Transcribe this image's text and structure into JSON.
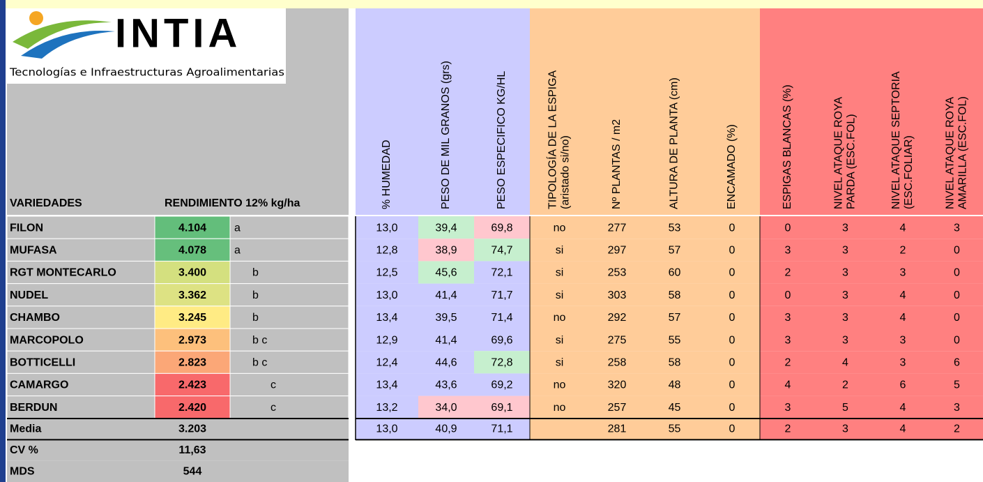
{
  "logo": {
    "name": "INTIA",
    "subtitle": "Tecnologías e Infraestructuras Agroalimentarias"
  },
  "table": {
    "headers": [
      [
        "VARIEDADES"
      ],
      [
        "RENDIMIENTO 12% kg/ha"
      ],
      [
        "% HUMEDAD"
      ],
      [
        "PESO DE MIL GRANOS (grs)"
      ],
      [
        "PESO ESPECIFICO KG/HL"
      ],
      [
        "TIPOLOGÍA DE LA ESPIGA",
        "(aristado si/no)"
      ],
      [
        "Nº PLANTAS / m2"
      ],
      [
        "ALTURA DE PLANTA (cm)"
      ],
      [
        "ENCAMADO (%)"
      ],
      [
        "ESPIGAS BLANCAS (%)"
      ],
      [
        "NIVEL ATAQUE ROYA",
        "PARDA (ESC.FOL)"
      ],
      [
        "NIVEL ATAQUE SEPTORIA",
        "(ESC.FOLIAR)"
      ],
      [
        "NIVEL ATAQUE ROYA",
        "AMARILLA (ESC.FOL)"
      ]
    ],
    "rows": [
      [
        "FILON",
        "4.104",
        "a",
        "13,0",
        "39,4",
        "69,8",
        "no",
        "277",
        "53",
        "0",
        "0",
        "3",
        "4",
        "3"
      ],
      [
        "MUFASA",
        "4.078",
        "a",
        "12,8",
        "38,9",
        "74,7",
        "si",
        "297",
        "57",
        "0",
        "3",
        "3",
        "2",
        "0"
      ],
      [
        "RGT MONTECARLO",
        "3.400",
        "b",
        "12,5",
        "45,6",
        "72,1",
        "si",
        "253",
        "60",
        "0",
        "2",
        "3",
        "3",
        "0"
      ],
      [
        "NUDEL",
        "3.362",
        "b",
        "13,0",
        "41,4",
        "71,7",
        "si",
        "303",
        "58",
        "0",
        "0",
        "3",
        "4",
        "0"
      ],
      [
        "CHAMBO",
        "3.245",
        "b",
        "13,4",
        "39,5",
        "71,4",
        "no",
        "292",
        "57",
        "0",
        "3",
        "3",
        "4",
        "0"
      ],
      [
        "MARCOPOLO",
        "2.973",
        "b c",
        "12,9",
        "41,4",
        "69,6",
        "si",
        "275",
        "55",
        "0",
        "3",
        "3",
        "3",
        "0"
      ],
      [
        "BOTTICELLI",
        "2.823",
        "b c",
        "12,4",
        "44,6",
        "72,8",
        "si",
        "258",
        "58",
        "0",
        "2",
        "4",
        "3",
        "6"
      ],
      [
        "CAMARGO",
        "2.423",
        "c",
        "13,4",
        "43,6",
        "69,2",
        "no",
        "320",
        "48",
        "0",
        "4",
        "2",
        "6",
        "5"
      ],
      [
        "BERDUN",
        "2.420",
        "c",
        "13,2",
        "34,0",
        "69,1",
        "no",
        "257",
        "45",
        "0",
        "3",
        "5",
        "4",
        "3"
      ]
    ],
    "media": {
      "label": "Media",
      "rendimiento": "3.203",
      "values": [
        "13,0",
        "40,9",
        "71,1",
        null,
        "281",
        "55",
        "0",
        "2",
        "3",
        "4",
        "2"
      ]
    },
    "cv": {
      "label": "CV %",
      "rendimiento": "11,63"
    },
    "mds": {
      "label": "MDS",
      "rendimiento": "544"
    }
  }
}
